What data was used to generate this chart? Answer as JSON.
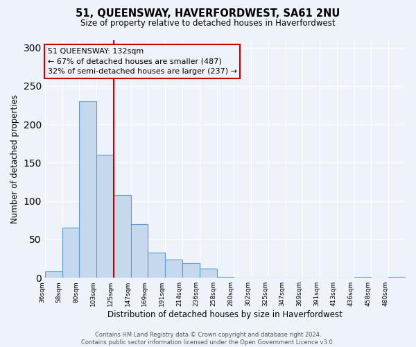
{
  "title": "51, QUEENSWAY, HAVERFORDWEST, SA61 2NU",
  "subtitle": "Size of property relative to detached houses in Haverfordwest",
  "xlabel": "Distribution of detached houses by size in Haverfordwest",
  "ylabel": "Number of detached properties",
  "footer_line1": "Contains HM Land Registry data © Crown copyright and database right 2024.",
  "footer_line2": "Contains public sector information licensed under the Open Government Licence v3.0.",
  "bin_labels": [
    "36sqm",
    "58sqm",
    "80sqm",
    "103sqm",
    "125sqm",
    "147sqm",
    "169sqm",
    "191sqm",
    "214sqm",
    "236sqm",
    "258sqm",
    "280sqm",
    "302sqm",
    "325sqm",
    "347sqm",
    "369sqm",
    "391sqm",
    "413sqm",
    "436sqm",
    "458sqm",
    "480sqm"
  ],
  "bar_values": [
    8,
    65,
    230,
    160,
    108,
    70,
    33,
    24,
    19,
    12,
    1,
    0,
    0,
    0,
    0,
    0,
    0,
    0,
    1,
    0,
    1
  ],
  "bar_color": "#c6d9ec",
  "bar_edge_color": "#5b9bd5",
  "annotation_title": "51 QUEENSWAY: 132sqm",
  "annotation_line2": "← 67% of detached houses are smaller (487)",
  "annotation_line3": "32% of semi-detached houses are larger (237) →",
  "vline_x": 4,
  "vline_color": "#cc0000",
  "annotation_box_color": "#cc0000",
  "ylim": [
    0,
    310
  ],
  "yticks": [
    0,
    50,
    100,
    150,
    200,
    250,
    300
  ],
  "background_color": "#eef2f9",
  "grid_color": "#ffffff"
}
